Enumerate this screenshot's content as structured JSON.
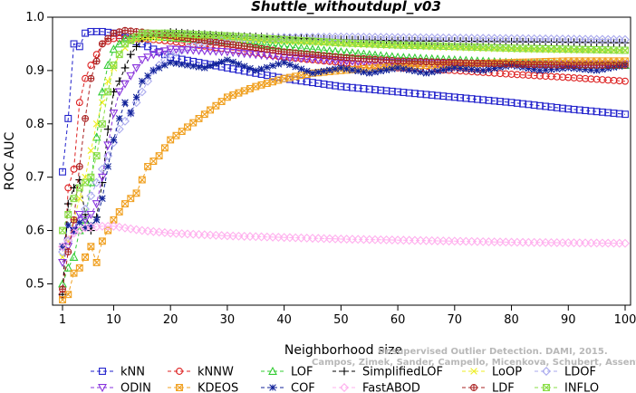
{
  "chart_data": {
    "type": "line",
    "title": "Shuttle_withoutdupl_v03",
    "xlabel": "Neighborhood size",
    "ylabel": "ROC AUC",
    "xlim": [
      1,
      100
    ],
    "ylim": [
      0.46,
      1.0
    ],
    "xticks": [
      1,
      10,
      20,
      30,
      40,
      50,
      60,
      70,
      80,
      90,
      100
    ],
    "yticks": [
      0.5,
      0.6,
      0.7,
      0.8,
      0.9,
      1.0
    ],
    "ytick_labels": [
      "0.5",
      "0.6",
      "0.7",
      "0.8",
      "0.9",
      "1.0"
    ],
    "grid": false,
    "legend_position": "bottom",
    "watermark": [
      "Unsupervised Outlier Detection. DAMI, 2015.",
      "Campos, Zimek, Sander, Campello, Micenkova, Schubert, Assent, Houle"
    ],
    "series": [
      {
        "name": "kNN",
        "color": "#2222cc",
        "marker": "square",
        "points": [
          [
            1,
            0.71
          ],
          [
            2,
            0.81
          ],
          [
            3,
            0.95
          ],
          [
            4,
            0.945
          ],
          [
            5,
            0.97
          ],
          [
            6,
            0.973
          ],
          [
            8,
            0.973
          ],
          [
            10,
            0.97
          ],
          [
            15,
            0.95
          ],
          [
            20,
            0.925
          ],
          [
            30,
            0.905
          ],
          [
            40,
            0.885
          ],
          [
            50,
            0.87
          ],
          [
            60,
            0.86
          ],
          [
            70,
            0.85
          ],
          [
            80,
            0.84
          ],
          [
            90,
            0.828
          ],
          [
            100,
            0.818
          ]
        ]
      },
      {
        "name": "kNNW",
        "color": "#dd2222",
        "marker": "circle",
        "points": [
          [
            1,
            0.48
          ],
          [
            2,
            0.68
          ],
          [
            3,
            0.715
          ],
          [
            4,
            0.84
          ],
          [
            5,
            0.885
          ],
          [
            6,
            0.91
          ],
          [
            8,
            0.95
          ],
          [
            10,
            0.96
          ],
          [
            15,
            0.96
          ],
          [
            20,
            0.955
          ],
          [
            30,
            0.94
          ],
          [
            40,
            0.925
          ],
          [
            50,
            0.915
          ],
          [
            60,
            0.905
          ],
          [
            70,
            0.9
          ],
          [
            80,
            0.893
          ],
          [
            90,
            0.887
          ],
          [
            100,
            0.88
          ]
        ]
      },
      {
        "name": "LOF",
        "color": "#33cc33",
        "marker": "triangle-up",
        "points": [
          [
            1,
            0.5
          ],
          [
            2,
            0.53
          ],
          [
            3,
            0.55
          ],
          [
            4,
            0.6
          ],
          [
            5,
            0.62
          ],
          [
            6,
            0.69
          ],
          [
            7,
            0.775
          ],
          [
            8,
            0.86
          ],
          [
            9,
            0.91
          ],
          [
            10,
            0.94
          ],
          [
            12,
            0.96
          ],
          [
            15,
            0.965
          ],
          [
            20,
            0.962
          ],
          [
            30,
            0.955
          ],
          [
            40,
            0.945
          ],
          [
            50,
            0.935
          ],
          [
            60,
            0.925
          ],
          [
            70,
            0.92
          ],
          [
            80,
            0.915
          ],
          [
            90,
            0.912
          ],
          [
            100,
            0.91
          ]
        ]
      },
      {
        "name": "SimplifiedLOF",
        "color": "#000000",
        "marker": "plus",
        "points": [
          [
            1,
            0.48
          ],
          [
            2,
            0.65
          ],
          [
            3,
            0.68
          ],
          [
            4,
            0.695
          ],
          [
            5,
            0.63
          ],
          [
            6,
            0.6
          ],
          [
            7,
            0.625
          ],
          [
            8,
            0.69
          ],
          [
            9,
            0.79
          ],
          [
            10,
            0.86
          ],
          [
            11,
            0.88
          ],
          [
            13,
            0.93
          ],
          [
            15,
            0.96
          ],
          [
            20,
            0.972
          ],
          [
            30,
            0.965
          ],
          [
            40,
            0.962
          ],
          [
            50,
            0.958
          ],
          [
            60,
            0.956
          ],
          [
            70,
            0.955
          ],
          [
            80,
            0.954
          ],
          [
            90,
            0.953
          ],
          [
            100,
            0.952
          ]
        ]
      },
      {
        "name": "LoOP",
        "color": "#eeee22",
        "marker": "x",
        "points": [
          [
            1,
            0.55
          ],
          [
            2,
            0.58
          ],
          [
            3,
            0.62
          ],
          [
            5,
            0.7
          ],
          [
            7,
            0.8
          ],
          [
            9,
            0.88
          ],
          [
            11,
            0.93
          ],
          [
            13,
            0.955
          ],
          [
            15,
            0.96
          ],
          [
            20,
            0.962
          ],
          [
            30,
            0.96
          ],
          [
            40,
            0.955
          ],
          [
            50,
            0.95
          ],
          [
            60,
            0.946
          ],
          [
            70,
            0.943
          ],
          [
            80,
            0.94
          ],
          [
            90,
            0.938
          ],
          [
            100,
            0.937
          ]
        ]
      },
      {
        "name": "LDOF",
        "color": "#aaaaee",
        "marker": "diamond",
        "points": [
          [
            1,
            0.56
          ],
          [
            3,
            0.6
          ],
          [
            5,
            0.64
          ],
          [
            7,
            0.69
          ],
          [
            9,
            0.74
          ],
          [
            11,
            0.79
          ],
          [
            13,
            0.82
          ],
          [
            15,
            0.86
          ],
          [
            17,
            0.9
          ],
          [
            20,
            0.93
          ],
          [
            25,
            0.95
          ],
          [
            30,
            0.958
          ],
          [
            40,
            0.962
          ],
          [
            50,
            0.963
          ],
          [
            60,
            0.962
          ],
          [
            70,
            0.961
          ],
          [
            80,
            0.96
          ],
          [
            90,
            0.959
          ],
          [
            100,
            0.958
          ]
        ]
      },
      {
        "name": "ODIN",
        "color": "#8833dd",
        "marker": "triangle-down",
        "points": [
          [
            1,
            0.54
          ],
          [
            2,
            0.57
          ],
          [
            3,
            0.6
          ],
          [
            4,
            0.63
          ],
          [
            5,
            0.62
          ],
          [
            6,
            0.63
          ],
          [
            7,
            0.65
          ],
          [
            8,
            0.7
          ],
          [
            9,
            0.76
          ],
          [
            10,
            0.82
          ],
          [
            11,
            0.86
          ],
          [
            12,
            0.875
          ],
          [
            13,
            0.89
          ],
          [
            15,
            0.92
          ],
          [
            17,
            0.93
          ],
          [
            20,
            0.94
          ],
          [
            30,
            0.935
          ],
          [
            40,
            0.925
          ],
          [
            50,
            0.918
          ],
          [
            60,
            0.915
          ],
          [
            70,
            0.913
          ],
          [
            80,
            0.912
          ],
          [
            90,
            0.912
          ],
          [
            100,
            0.912
          ]
        ]
      },
      {
        "name": "KDEOS",
        "color": "#f0a020",
        "marker": "square-x",
        "points": [
          [
            1,
            0.47
          ],
          [
            2,
            0.48
          ],
          [
            3,
            0.52
          ],
          [
            4,
            0.53
          ],
          [
            5,
            0.55
          ],
          [
            6,
            0.57
          ],
          [
            7,
            0.54
          ],
          [
            8,
            0.58
          ],
          [
            9,
            0.6
          ],
          [
            10,
            0.62
          ],
          [
            12,
            0.65
          ],
          [
            14,
            0.67
          ],
          [
            16,
            0.72
          ],
          [
            18,
            0.74
          ],
          [
            20,
            0.77
          ],
          [
            25,
            0.81
          ],
          [
            30,
            0.85
          ],
          [
            35,
            0.87
          ],
          [
            40,
            0.885
          ],
          [
            45,
            0.895
          ],
          [
            50,
            0.9
          ],
          [
            60,
            0.908
          ],
          [
            70,
            0.912
          ],
          [
            80,
            0.915
          ],
          [
            90,
            0.918
          ],
          [
            100,
            0.918
          ]
        ]
      },
      {
        "name": "COF",
        "color": "#112299",
        "marker": "asterisk",
        "points": [
          [
            1,
            0.57
          ],
          [
            2,
            0.61
          ],
          [
            3,
            0.6
          ],
          [
            4,
            0.615
          ],
          [
            5,
            0.605
          ],
          [
            6,
            0.61
          ],
          [
            7,
            0.62
          ],
          [
            8,
            0.66
          ],
          [
            9,
            0.72
          ],
          [
            10,
            0.77
          ],
          [
            11,
            0.81
          ],
          [
            12,
            0.84
          ],
          [
            13,
            0.82
          ],
          [
            15,
            0.88
          ],
          [
            17,
            0.9
          ],
          [
            20,
            0.915
          ],
          [
            23,
            0.91
          ],
          [
            26,
            0.905
          ],
          [
            30,
            0.92
          ],
          [
            35,
            0.9
          ],
          [
            40,
            0.915
          ],
          [
            45,
            0.895
          ],
          [
            50,
            0.905
          ],
          [
            55,
            0.895
          ],
          [
            60,
            0.905
          ],
          [
            65,
            0.895
          ],
          [
            70,
            0.905
          ],
          [
            75,
            0.9
          ],
          [
            80,
            0.91
          ],
          [
            85,
            0.9
          ],
          [
            90,
            0.905
          ],
          [
            95,
            0.9
          ],
          [
            100,
            0.91
          ]
        ]
      },
      {
        "name": "FastABOD",
        "color": "#ffb0ee",
        "marker": "diamond",
        "points": [
          [
            1,
            0.57
          ],
          [
            3,
            0.595
          ],
          [
            5,
            0.605
          ],
          [
            8,
            0.608
          ],
          [
            10,
            0.608
          ],
          [
            15,
            0.6
          ],
          [
            20,
            0.595
          ],
          [
            30,
            0.59
          ],
          [
            40,
            0.587
          ],
          [
            50,
            0.584
          ],
          [
            60,
            0.582
          ],
          [
            70,
            0.58
          ],
          [
            80,
            0.578
          ],
          [
            90,
            0.577
          ],
          [
            100,
            0.576
          ]
        ]
      },
      {
        "name": "LDF",
        "color": "#aa2222",
        "marker": "circle-plus",
        "points": [
          [
            1,
            0.49
          ],
          [
            2,
            0.56
          ],
          [
            3,
            0.62
          ],
          [
            4,
            0.72
          ],
          [
            5,
            0.81
          ],
          [
            6,
            0.885
          ],
          [
            8,
            0.95
          ],
          [
            10,
            0.97
          ],
          [
            12,
            0.975
          ],
          [
            15,
            0.972
          ],
          [
            20,
            0.965
          ],
          [
            30,
            0.95
          ],
          [
            40,
            0.935
          ],
          [
            50,
            0.925
          ],
          [
            60,
            0.918
          ],
          [
            70,
            0.915
          ],
          [
            80,
            0.912
          ],
          [
            90,
            0.91
          ],
          [
            100,
            0.91
          ]
        ]
      },
      {
        "name": "INFLO",
        "color": "#88dd44",
        "marker": "square-x",
        "points": [
          [
            1,
            0.6
          ],
          [
            2,
            0.63
          ],
          [
            3,
            0.66
          ],
          [
            4,
            0.68
          ],
          [
            5,
            0.69
          ],
          [
            6,
            0.7
          ],
          [
            7,
            0.74
          ],
          [
            8,
            0.8
          ],
          [
            9,
            0.86
          ],
          [
            10,
            0.91
          ],
          [
            12,
            0.95
          ],
          [
            15,
            0.97
          ],
          [
            20,
            0.97
          ],
          [
            30,
            0.965
          ],
          [
            40,
            0.958
          ],
          [
            50,
            0.952
          ],
          [
            60,
            0.948
          ],
          [
            70,
            0.945
          ],
          [
            80,
            0.942
          ],
          [
            90,
            0.94
          ],
          [
            100,
            0.938
          ]
        ]
      }
    ]
  }
}
